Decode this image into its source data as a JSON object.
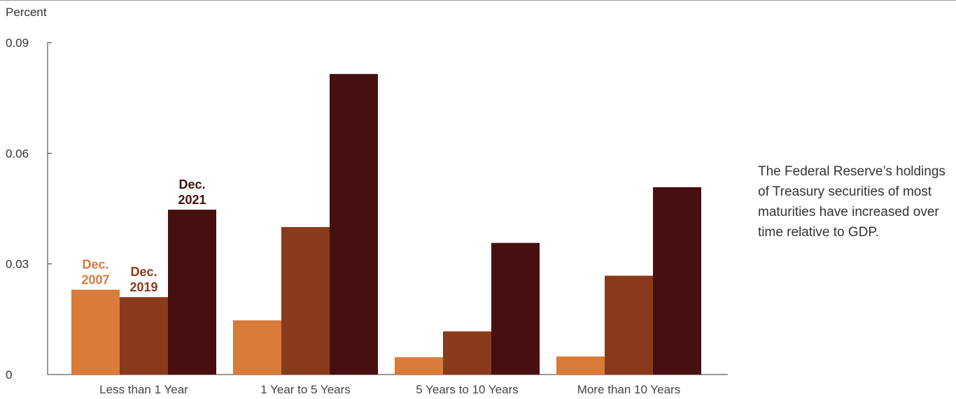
{
  "caption": "The Federal Reserve’s holdings of Treasury securities of most maturities have increased over time relative to GDP.",
  "colors": {
    "dec_2007": "#d97b39",
    "dec_2019": "#8a3a1c",
    "dec_2021": "#45100f",
    "axis": "#333333"
  },
  "chart_data": {
    "type": "bar",
    "title": "",
    "ylabel": "Percent",
    "xlabel": "",
    "ylim": [
      0,
      0.09
    ],
    "yticks": [
      {
        "value": 0,
        "label": "0"
      },
      {
        "value": 0.03,
        "label": "0.03"
      },
      {
        "value": 0.06,
        "label": "0.06"
      },
      {
        "value": 0.09,
        "label": "0.09"
      }
    ],
    "categories": [
      "Less than 1 Year",
      "1 Year to 5 Years",
      "5 Years to 10 Years",
      "More than 10 Years"
    ],
    "series": [
      {
        "name": "Dec. 2007",
        "label_lines": [
          "Dec.",
          "2007"
        ],
        "color": "#d97b39",
        "values": [
          0.023,
          0.0147,
          0.0047,
          0.0049
        ]
      },
      {
        "name": "Dec. 2019",
        "label_lines": [
          "Dec.",
          "2019"
        ],
        "color": "#8a3a1c",
        "values": [
          0.021,
          0.04,
          0.0117,
          0.0268
        ]
      },
      {
        "name": "Dec. 2021",
        "label_lines": [
          "Dec.",
          "2021"
        ],
        "color": "#45100f",
        "values": [
          0.0447,
          0.0815,
          0.0357,
          0.0508
        ]
      }
    ],
    "legend": "inline labels above first category bars",
    "grid": false
  }
}
